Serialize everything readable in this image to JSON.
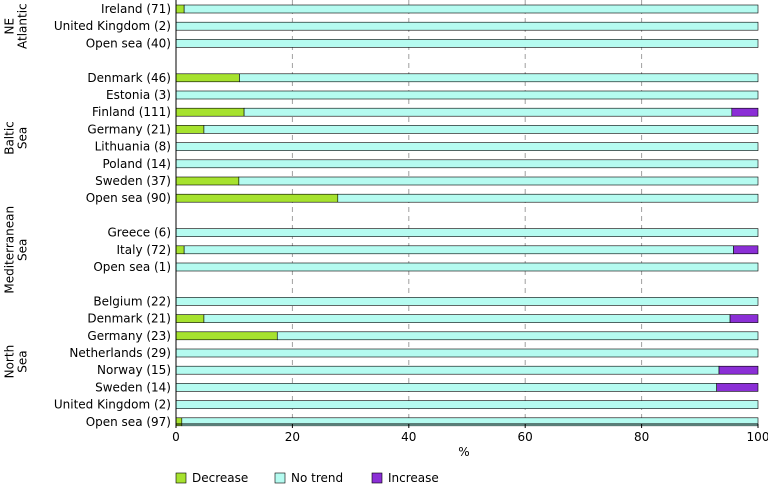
{
  "chart_data": {
    "type": "bar",
    "orientation": "horizontal",
    "stacked": true,
    "xlabel": "%",
    "xlim": [
      0,
      100
    ],
    "xticks": [
      0,
      20,
      40,
      60,
      80,
      100
    ],
    "grid": "vertical dashed",
    "legend_position": "bottom-left",
    "series_names": [
      "Decrease",
      "No trend",
      "Increase"
    ],
    "colors": {
      "Decrease": "#a6e22e",
      "No trend": "#b5fbf0",
      "Increase": "#8b2fd6"
    },
    "groups": [
      {
        "name": "NE Atlantic",
        "categories": [
          {
            "label": "Ireland (71)",
            "values": [
              1.4,
              98.6,
              0
            ]
          },
          {
            "label": "United Kingdom (2)",
            "values": [
              0,
              100,
              0
            ]
          },
          {
            "label": "Open sea (40)",
            "values": [
              0,
              100,
              0
            ]
          }
        ]
      },
      {
        "name": "Baltic Sea",
        "categories": [
          {
            "label": "Denmark (46)",
            "values": [
              10.9,
              89.1,
              0
            ]
          },
          {
            "label": "Estonia (3)",
            "values": [
              0,
              100,
              0
            ]
          },
          {
            "label": "Finland (111)",
            "values": [
              11.7,
              83.8,
              4.5
            ]
          },
          {
            "label": "Germany (21)",
            "values": [
              4.8,
              95.2,
              0
            ]
          },
          {
            "label": "Lithuania (8)",
            "values": [
              0,
              100,
              0
            ]
          },
          {
            "label": "Poland (14)",
            "values": [
              0,
              100,
              0
            ]
          },
          {
            "label": "Sweden (37)",
            "values": [
              10.8,
              89.2,
              0
            ]
          },
          {
            "label": "Open sea (90)",
            "values": [
              27.8,
              72.2,
              0
            ]
          }
        ]
      },
      {
        "name": "Mediterranean Sea",
        "categories": [
          {
            "label": "Greece (6)",
            "values": [
              0,
              100,
              0
            ]
          },
          {
            "label": "Italy (72)",
            "values": [
              1.4,
              94.4,
              4.2
            ]
          },
          {
            "label": "Open sea (1)",
            "values": [
              0,
              100,
              0
            ]
          }
        ]
      },
      {
        "name": "North Sea",
        "categories": [
          {
            "label": "Belgium (22)",
            "values": [
              0,
              100,
              0
            ]
          },
          {
            "label": "Denmark (21)",
            "values": [
              4.8,
              90.4,
              4.8
            ]
          },
          {
            "label": "Germany (23)",
            "values": [
              17.4,
              82.6,
              0
            ]
          },
          {
            "label": "Netherlands (29)",
            "values": [
              0,
              100,
              0
            ]
          },
          {
            "label": "Norway (15)",
            "values": [
              0,
              93.3,
              6.7
            ]
          },
          {
            "label": "Sweden (14)",
            "values": [
              0,
              92.9,
              7.1
            ]
          },
          {
            "label": "United Kingdom (2)",
            "values": [
              0,
              100,
              0
            ]
          },
          {
            "label": "Open sea (97)",
            "values": [
              1.0,
              99.0,
              0
            ]
          }
        ]
      }
    ]
  }
}
